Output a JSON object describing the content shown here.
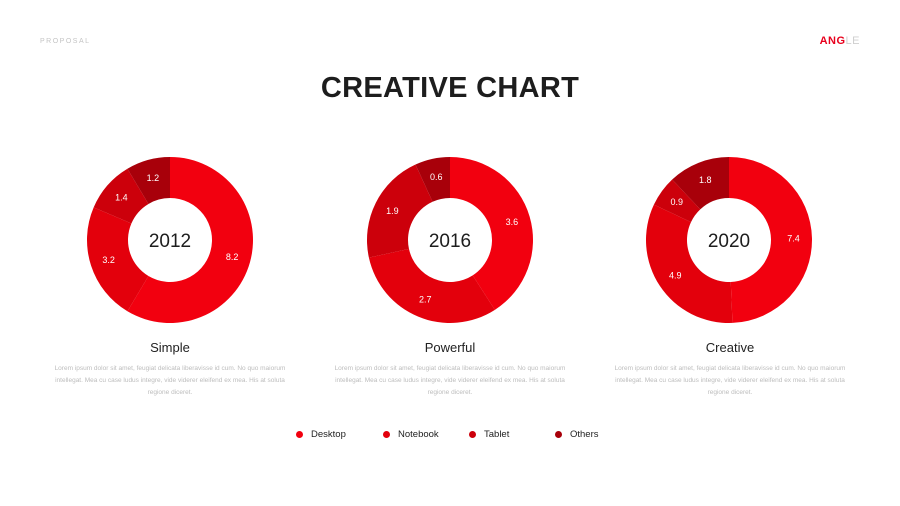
{
  "header": {
    "proposal": "PROPOSAL",
    "brand_strong": "ANG",
    "brand_light": "LE"
  },
  "title": "CREATIVE CHART",
  "colors": {
    "accent": "#e8001c",
    "desktop": "#f2000f",
    "notebook": "#e3000c",
    "tablet": "#cc000b",
    "others": "#a8000a"
  },
  "chart_data": [
    {
      "type": "pie",
      "center_label": "2012",
      "categories": [
        "Desktop",
        "Notebook",
        "Tablet",
        "Others"
      ],
      "values": [
        8.2,
        3.2,
        1.4,
        1.2
      ],
      "title": "Simple"
    },
    {
      "type": "pie",
      "center_label": "2016",
      "categories": [
        "Desktop",
        "Notebook",
        "Tablet",
        "Others"
      ],
      "values": [
        3.6,
        2.7,
        1.9,
        0.6
      ],
      "title": "Powerful"
    },
    {
      "type": "pie",
      "center_label": "2020",
      "categories": [
        "Desktop",
        "Notebook",
        "Tablet",
        "Others"
      ],
      "values": [
        7.4,
        4.9,
        0.9,
        1.8
      ],
      "title": "Creative"
    }
  ],
  "blocks": [
    {
      "name": "Simple",
      "desc": "Lorem ipsum dolor sit amet, feugiat delicata liberavisse id cum. No quo maiorum intellegat. Mea cu case ludus integre, vide viderer eleifend ex mea. His at soluta regione diceret."
    },
    {
      "name": "Powerful",
      "desc": "Lorem ipsum dolor sit amet, feugiat delicata liberavisse id cum. No quo maiorum intellegat. Mea cu case ludus integre, vide viderer eleifend ex mea. His at soluta regione diceret."
    },
    {
      "name": "Creative",
      "desc": "Lorem ipsum dolor sit amet, feugiat delicata liberavisse id cum. No quo maiorum intellegat. Mea cu case ludus integre, vide viderer eleifend ex mea. His at soluta regione diceret."
    }
  ],
  "legend": [
    {
      "label": "Desktop",
      "color": "#f2000f"
    },
    {
      "label": "Notebook",
      "color": "#e3000c"
    },
    {
      "label": "Tablet",
      "color": "#cc000b"
    },
    {
      "label": "Others",
      "color": "#a8000a"
    }
  ]
}
